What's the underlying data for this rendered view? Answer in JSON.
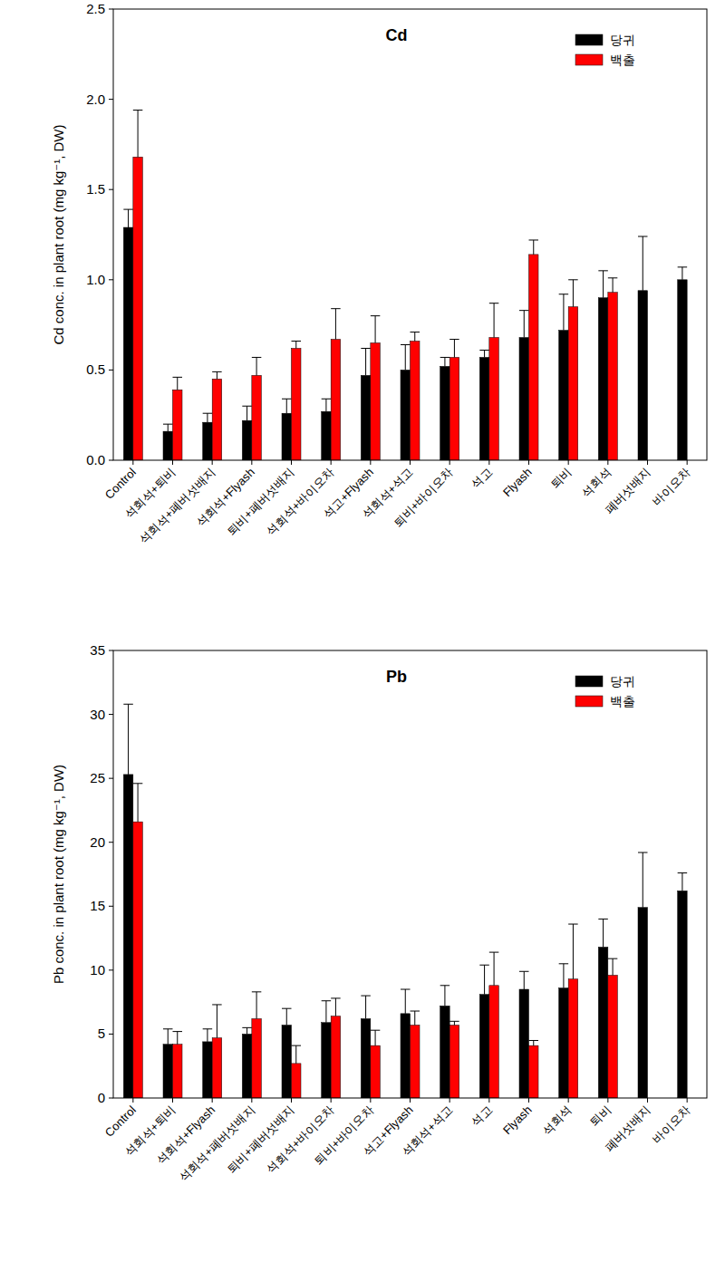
{
  "chart_data": [
    {
      "type": "bar",
      "title": "Cd",
      "y_label": "Cd conc. in plant root (mg kg⁻¹, DW)",
      "categories": [
        "Control",
        "석회석+퇴비",
        "석회석+폐버섯배지",
        "석회석+Flyash",
        "퇴비+폐버섯배지",
        "석회석+바이오차",
        "석고+Flyash",
        "석회석+석고",
        "퇴비+바이오차",
        "석고",
        "Flyash",
        "퇴비",
        "석회석",
        "폐버섯배지",
        "바이오차"
      ],
      "series": [
        {
          "name": "당귀",
          "color": "#000000",
          "values": [
            1.29,
            0.16,
            0.21,
            0.22,
            0.26,
            0.27,
            0.47,
            0.5,
            0.52,
            0.57,
            0.68,
            0.72,
            0.9,
            0.94,
            1.0
          ],
          "errors": [
            0.1,
            0.04,
            0.05,
            0.08,
            0.08,
            0.07,
            0.15,
            0.14,
            0.05,
            0.04,
            0.15,
            0.2,
            0.15,
            0.3,
            0.07
          ]
        },
        {
          "name": "백출",
          "color": "#ff0000",
          "values": [
            1.68,
            0.39,
            0.45,
            0.47,
            0.62,
            0.67,
            0.65,
            0.66,
            0.57,
            0.68,
            1.14,
            0.85,
            0.93,
            null,
            null
          ],
          "errors": [
            0.26,
            0.07,
            0.04,
            0.1,
            0.04,
            0.17,
            0.15,
            0.05,
            0.1,
            0.19,
            0.08,
            0.15,
            0.08,
            null,
            null
          ]
        }
      ],
      "ylim": [
        0,
        2.5
      ],
      "yticks": [
        {
          "value": 0,
          "label": "0.0"
        },
        0.5,
        {
          "value": 1,
          "label": "1.0"
        },
        1.5,
        {
          "value": 2,
          "label": "2.0"
        },
        2.5
      ],
      "legend": "upper right"
    },
    {
      "type": "bar",
      "title": "Pb",
      "y_label": "Pb conc. in plant root (mg kg⁻¹, DW)",
      "categories": [
        "Control",
        "석회석+퇴비",
        "석회석+Flyash",
        "석회석+폐버섯배지",
        "퇴비+폐버섯배지",
        "석회석+바이오차",
        "퇴비+바이오차",
        "석고+Flyash",
        "석회석+석고",
        "석고",
        "Flyash",
        "석회석",
        "퇴비",
        "폐버섯배지",
        "바이오차"
      ],
      "series": [
        {
          "name": "당귀",
          "color": "#000000",
          "values": [
            25.3,
            4.2,
            4.4,
            5.0,
            5.7,
            5.9,
            6.2,
            6.6,
            7.2,
            8.1,
            8.5,
            8.6,
            11.8,
            14.9,
            16.2
          ],
          "errors": [
            5.5,
            1.2,
            1.0,
            0.5,
            1.3,
            1.7,
            1.8,
            1.9,
            1.6,
            2.3,
            1.4,
            1.9,
            2.2,
            4.3,
            1.4
          ]
        },
        {
          "name": "백출",
          "color": "#ff0000",
          "values": [
            21.6,
            4.2,
            4.7,
            6.2,
            2.7,
            6.4,
            4.1,
            5.7,
            5.7,
            8.8,
            4.1,
            9.3,
            9.6,
            null,
            null
          ],
          "errors": [
            3.0,
            1.0,
            2.6,
            2.1,
            1.4,
            1.4,
            1.2,
            1.1,
            0.3,
            2.6,
            0.4,
            4.3,
            1.3,
            null,
            null
          ]
        }
      ],
      "ylim": [
        0,
        35
      ],
      "yticks": [
        0,
        5,
        10,
        15,
        20,
        25,
        30,
        35
      ],
      "legend": "upper right"
    }
  ]
}
